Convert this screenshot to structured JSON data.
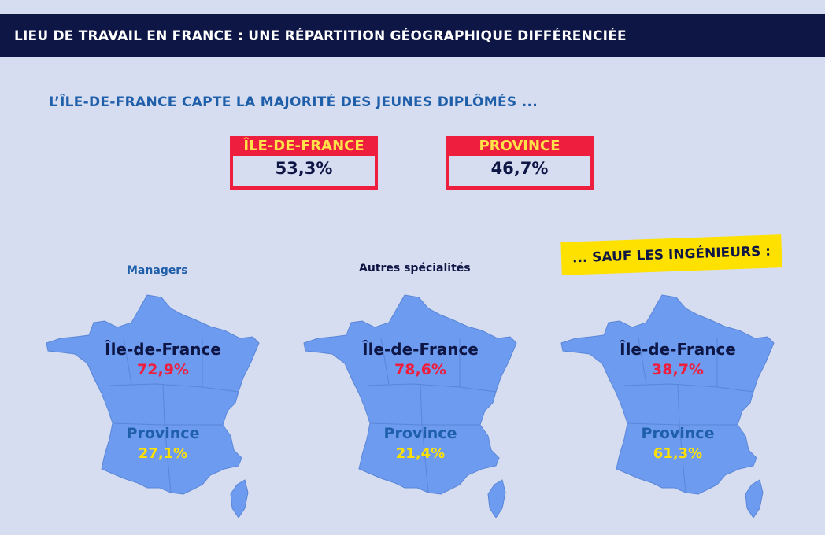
{
  "header": {
    "title": "LIEU DE TRAVAIL EN FRANCE : UNE RÉPARTITION GÉOGRAPHIQUE DIFFÉRENCIÉE"
  },
  "subtitle": "L’ÎLE-DE-FRANCE CAPTE LA MAJORITÉ DES JEUNES DIPLÔMÉS ...",
  "totals": {
    "idf": {
      "label": "ÎLE-DE-FRANCE",
      "value": "53,3%"
    },
    "province": {
      "label": "PROVINCE",
      "value": "46,7%"
    }
  },
  "highlight": "... SAUF LES INGÉNIEURS :",
  "colors": {
    "navy": "#0d1645",
    "blue": "#1f5faa",
    "red": "#ee1e3e",
    "yellow": "#ffe100",
    "map_fill": "#6d9bef",
    "background": "#d6ddf0"
  },
  "panels": [
    {
      "label": "Managers",
      "idf_name": "Île-de-France",
      "idf_value": "72,9%",
      "prov_name": "Province",
      "prov_value": "27,1%"
    },
    {
      "label": "Autres spécialités",
      "idf_name": "Île-de-France",
      "idf_value": "78,6%",
      "prov_name": "Province",
      "prov_value": "21,4%"
    },
    {
      "label": "",
      "idf_name": "Île-de-France",
      "idf_value": "38,7%",
      "prov_name": "Province",
      "prov_value": "61,3%"
    }
  ]
}
